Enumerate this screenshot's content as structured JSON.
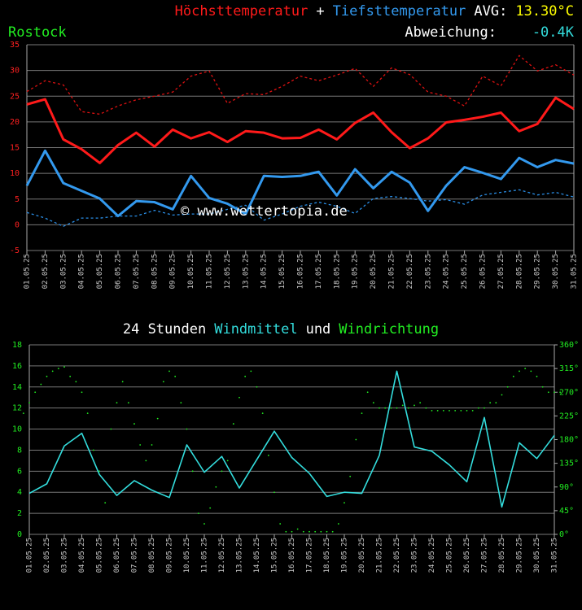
{
  "chart_data": [
    {
      "type": "line",
      "title_parts": [
        {
          "text": "Höchsttemperatur",
          "color": "#ff1a1a"
        },
        {
          "text": "+",
          "color": "#ffffff"
        },
        {
          "text": "Tiefsttemperatur",
          "color": "#3399ee"
        },
        {
          "text": "AVG:",
          "color": "#ffffff"
        },
        {
          "text": "13.30°C",
          "color": "#ffff00"
        }
      ],
      "location": "Rostock",
      "deviation_label": "Abweichung:",
      "deviation_value": "-0.4K",
      "watermark": "© www.wettertopia.de",
      "categories": [
        "01.05.25",
        "02.05.25",
        "03.05.25",
        "04.05.25",
        "05.05.25",
        "06.05.25",
        "07.05.25",
        "08.05.25",
        "09.05.25",
        "10.05.25",
        "11.05.25",
        "12.05.25",
        "13.05.25",
        "14.05.25",
        "15.05.25",
        "16.05.25",
        "17.05.25",
        "18.05.25",
        "19.05.25",
        "20.05.25",
        "21.05.25",
        "22.05.25",
        "23.05.25",
        "24.05.25",
        "25.05.25",
        "26.05.25",
        "27.05.25",
        "28.05.25",
        "29.05.25",
        "30.05.25",
        "31.05.25"
      ],
      "series": [
        {
          "color": "#dd1111",
          "dashed": true,
          "values": [
            25.9,
            28.0,
            27.2,
            22.0,
            21.5,
            23.1,
            24.3,
            25.0,
            25.8,
            28.9,
            29.9,
            23.6,
            25.5,
            25.3,
            26.9,
            28.9,
            28.0,
            29.1,
            30.4,
            26.9,
            30.5,
            29.2,
            25.8,
            25.0,
            23.1,
            28.9,
            27.0,
            32.9,
            29.9,
            31.1,
            29.1
          ]
        },
        {
          "color": "#ff1a1a",
          "dashed": false,
          "values": [
            23.4,
            24.4,
            16.6,
            14.7,
            12.0,
            15.5,
            17.9,
            15.2,
            18.5,
            16.8,
            18.0,
            16.1,
            18.2,
            17.9,
            16.8,
            16.9,
            18.5,
            16.6,
            19.8,
            21.8,
            18.0,
            14.9,
            16.8,
            19.9,
            20.4,
            21.0,
            21.8,
            18.2,
            19.6,
            24.7,
            22.5
          ]
        },
        {
          "color": "#3399ee",
          "dashed": false,
          "values": [
            7.6,
            14.4,
            8.1,
            6.6,
            5.1,
            1.7,
            4.6,
            4.4,
            3.0,
            9.5,
            5.2,
            4.1,
            2.1,
            9.5,
            9.3,
            9.5,
            10.3,
            5.7,
            10.8,
            7.1,
            10.3,
            8.2,
            2.7,
            7.6,
            11.2,
            10.1,
            8.9,
            13.0,
            11.2,
            12.6,
            11.9
          ]
        },
        {
          "color": "#2a8ee6",
          "dashed": true,
          "values": [
            2.4,
            1.3,
            -0.3,
            1.3,
            1.3,
            1.7,
            1.7,
            2.8,
            1.9,
            2.1,
            2.1,
            3.0,
            3.8,
            0.9,
            2.1,
            3.6,
            4.4,
            3.6,
            2.2,
            5.1,
            5.5,
            5.1,
            4.6,
            4.9,
            4.0,
            5.8,
            6.3,
            6.8,
            5.8,
            6.3,
            5.4
          ]
        }
      ],
      "ylim": [
        -5,
        35
      ],
      "yticks": [
        -5,
        0,
        5,
        10,
        15,
        20,
        25,
        30,
        35
      ],
      "tick_color": "#ff2020",
      "grid": true
    },
    {
      "type": "line",
      "title_parts": [
        {
          "text": "24 Stunden",
          "color": "#ffffff"
        },
        {
          "text": "Windmittel",
          "color": "#33dddd"
        },
        {
          "text": "und",
          "color": "#ffffff"
        },
        {
          "text": "Windrichtung",
          "color": "#22ee22"
        }
      ],
      "categories": [
        "01.05.25",
        "02.05.25",
        "03.05.25",
        "04.05.25",
        "05.05.25",
        "06.05.25",
        "07.05.25",
        "08.05.25",
        "09.05.25",
        "10.05.25",
        "11.05.25",
        "12.05.25",
        "13.05.25",
        "14.05.25",
        "15.05.25",
        "16.05.25",
        "17.05.25",
        "18.05.25",
        "19.05.25",
        "20.05.25",
        "21.05.25",
        "22.05.25",
        "23.05.25",
        "24.05.25",
        "25.05.25",
        "26.05.25",
        "27.05.25",
        "28.05.25",
        "29.05.25",
        "30.05.25",
        "31.05.25"
      ],
      "series": [
        {
          "color": "#33dddd",
          "values": [
            3.9,
            4.8,
            8.4,
            9.6,
            5.7,
            3.7,
            5.1,
            4.2,
            3.5,
            8.5,
            5.9,
            7.4,
            4.4,
            7.1,
            9.8,
            7.3,
            5.8,
            3.6,
            4.0,
            3.9,
            7.5,
            15.5,
            8.3,
            7.9,
            6.6,
            5.0,
            11.1,
            2.6,
            8.7,
            7.2,
            9.4
          ]
        },
        {
          "color": "#22ee22",
          "axis": "y2",
          "style": "dots",
          "values": [
            [
              230,
              250,
              270
            ],
            [
              285,
              300,
              310
            ],
            [
              315,
              318,
              300
            ],
            [
              290,
              270,
              230
            ],
            [
              160,
              120,
              60
            ],
            [
              200,
              250,
              290
            ],
            [
              250,
              210,
              170
            ],
            [
              140,
              170,
              220
            ],
            [
              290,
              310,
              300
            ],
            [
              250,
              200,
              120
            ],
            [
              40,
              20,
              50
            ],
            [
              90,
              120,
              140
            ],
            [
              210,
              260,
              300
            ],
            [
              310,
              280,
              230
            ],
            [
              150,
              80,
              20
            ],
            [
              5,
              5,
              10
            ],
            [
              5,
              5,
              5
            ],
            [
              5,
              5,
              5
            ],
            [
              20,
              60,
              110
            ],
            [
              180,
              230,
              270
            ],
            [
              250,
              240,
              240
            ],
            [
              240,
              240,
              245
            ],
            [
              240,
              245,
              250
            ],
            [
              240,
              235,
              235
            ],
            [
              235,
              235,
              235
            ],
            [
              235,
              235,
              235
            ],
            [
              240,
              240,
              250
            ],
            [
              250,
              265,
              280
            ],
            [
              300,
              310,
              315
            ],
            [
              310,
              300,
              280
            ],
            [
              270,
              270,
              270
            ]
          ]
        }
      ],
      "ylim": [
        0,
        18
      ],
      "yticks": [
        0,
        2,
        4,
        6,
        8,
        10,
        12,
        14,
        16,
        18
      ],
      "y2lim": [
        0,
        360
      ],
      "y2ticks": [
        {
          "value": 0,
          "label": "0°"
        },
        {
          "value": 45,
          "label": "45°"
        },
        {
          "value": 90,
          "label": "90°"
        },
        {
          "value": 135,
          "label": "135°"
        },
        {
          "value": 180,
          "label": "180°"
        },
        {
          "value": 225,
          "label": "225°"
        },
        {
          "value": 270,
          "label": "270°"
        },
        {
          "value": 315,
          "label": "315°"
        },
        {
          "value": 360,
          "label": "360°"
        }
      ],
      "tick_color": "#22ee22",
      "grid": true
    }
  ]
}
